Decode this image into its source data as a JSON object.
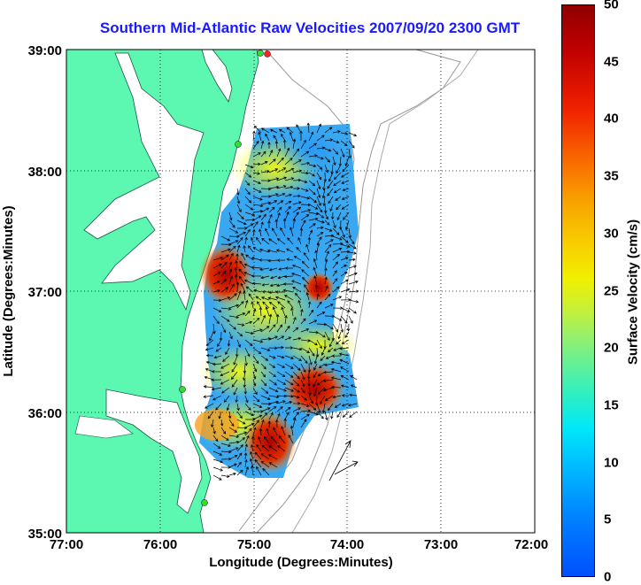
{
  "title": "Southern Mid-Atlantic Raw Velocities 2007/09/20 2300 GMT",
  "map": {
    "x_axis": {
      "label": "Longitude (Degrees:Minutes)",
      "ticks": [
        "77:00",
        "76:00",
        "75:00",
        "74:00",
        "73:00",
        "72:00"
      ]
    },
    "y_axis": {
      "label": "Latitude (Degrees:Minutes)",
      "ticks": [
        "39:00",
        "38:00",
        "37:00",
        "36:00",
        "35:00"
      ]
    },
    "land_color": "#5cf7b0",
    "grid": "dotted"
  },
  "colorbar": {
    "label": "Surface Velocity (cm/s)",
    "ticks": [
      "50",
      "45",
      "40",
      "35",
      "30",
      "25",
      "20",
      "15",
      "10",
      "5",
      "0"
    ],
    "range": [
      0,
      50
    ],
    "colormap": "jet"
  }
}
